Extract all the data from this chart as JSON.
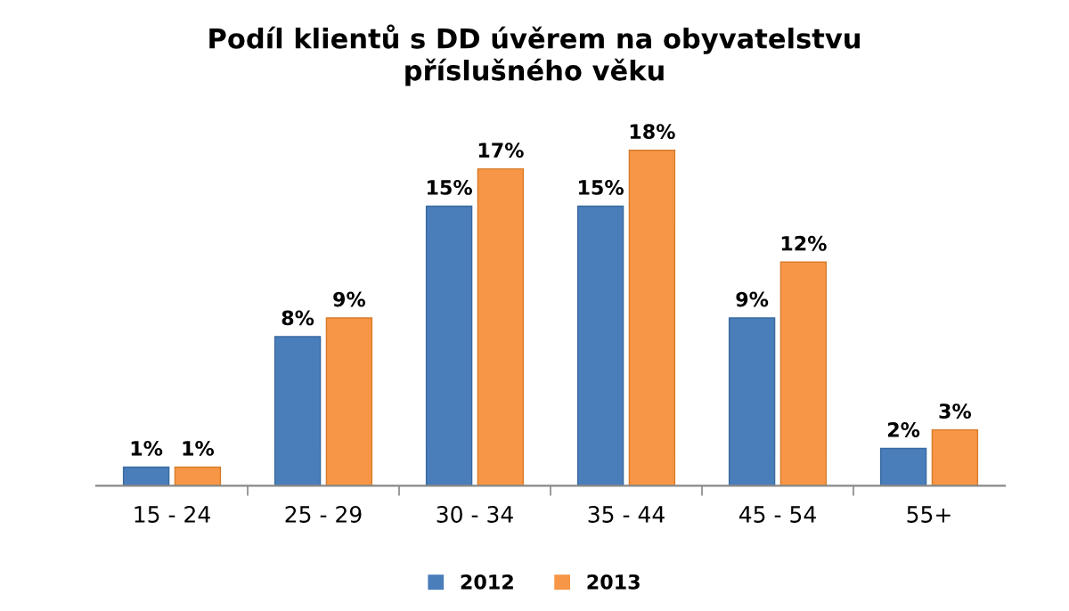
{
  "chart_data": {
    "type": "bar",
    "title": "Podíl klientů s DD úvěrem na obyvatelstvu\npříslušného věku",
    "categories": [
      "15 - 24",
      "25 - 29",
      "30 - 34",
      "35 - 44",
      "45 - 54",
      "55+"
    ],
    "series": [
      {
        "name": "2012",
        "color": "#4a7ebb",
        "values": [
          1,
          8,
          15,
          15,
          9,
          2
        ],
        "value_labels": [
          "1%",
          "8%",
          "15%",
          "15%",
          "9%",
          "2%"
        ]
      },
      {
        "name": "2013",
        "color": "#f79646",
        "values": [
          1,
          9,
          17,
          18,
          12,
          3
        ],
        "value_labels": [
          "1%",
          "9%",
          "17%",
          "18%",
          "12%",
          "3%"
        ]
      }
    ],
    "legend": "bottom",
    "grid": false
  }
}
